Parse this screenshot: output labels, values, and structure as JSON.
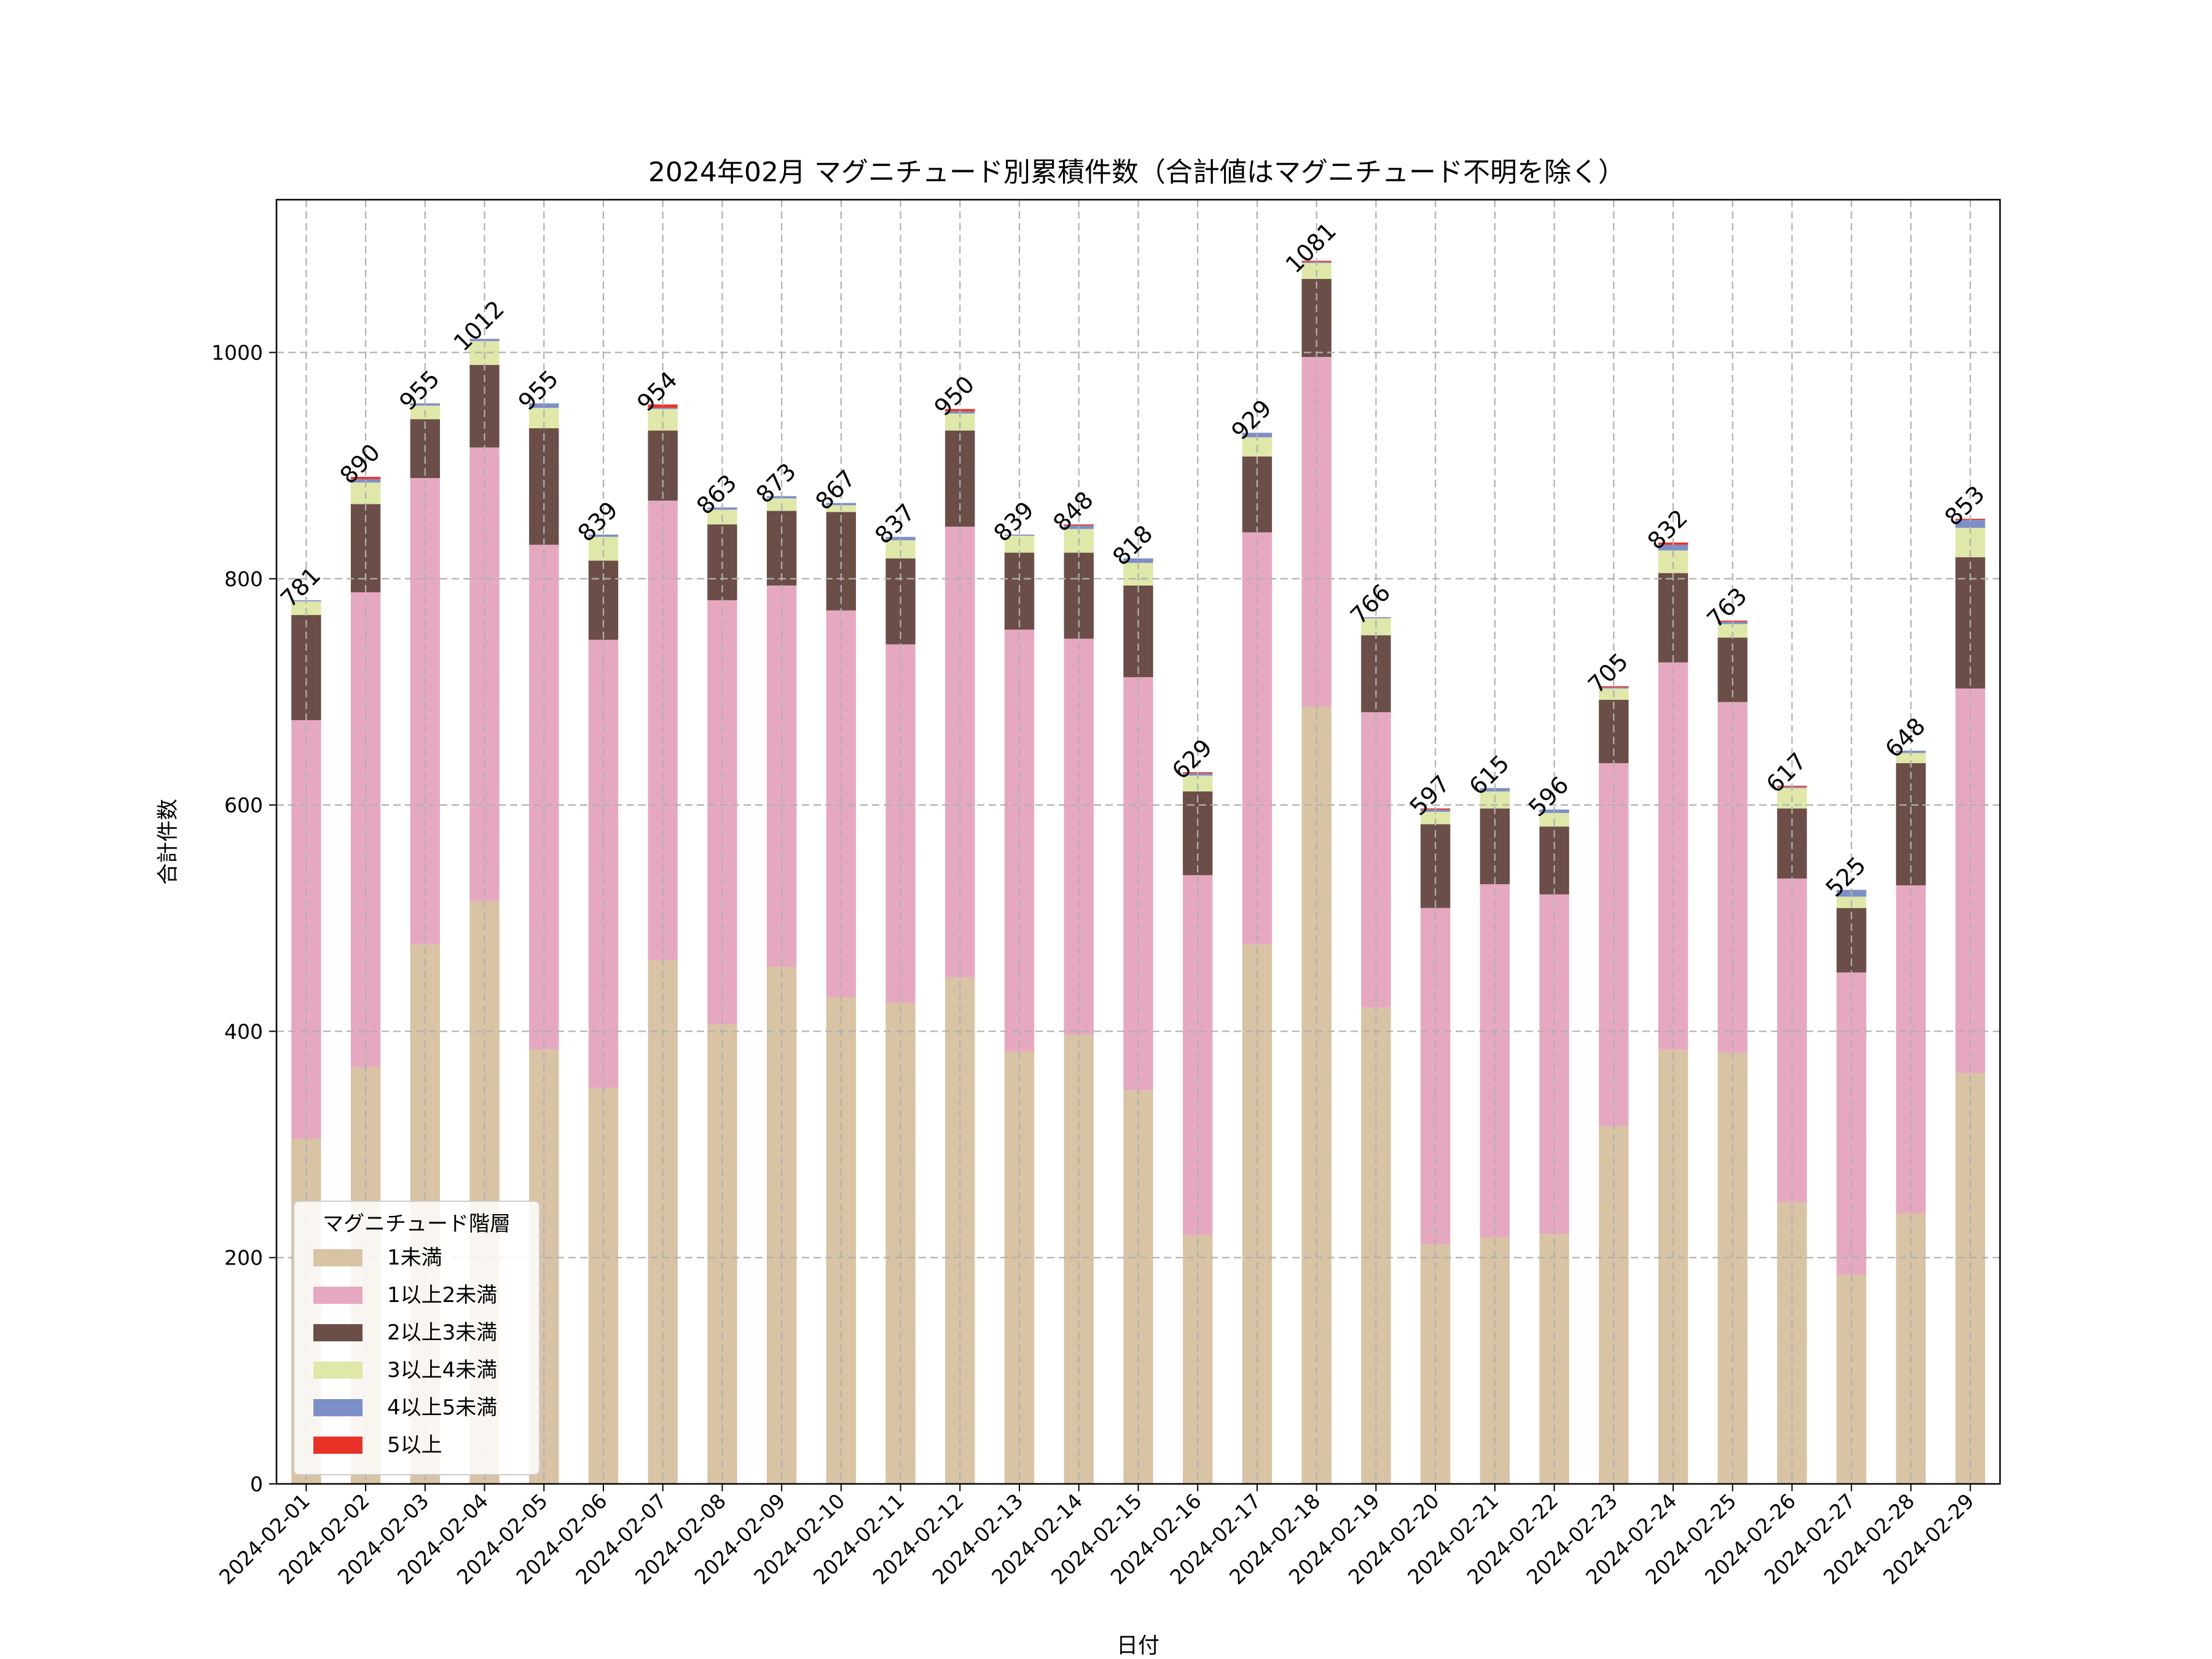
{
  "chart_data": {
    "type": "bar",
    "stacked": true,
    "title": "2024年02月 マグニチュード別累積件数（合計値はマグニチュード不明を除く）",
    "xlabel": "日付",
    "ylabel": "合計件数",
    "ylim": [
      0,
      1135
    ],
    "yticks": [
      0,
      200,
      400,
      600,
      800,
      1000
    ],
    "grid": true,
    "legend": {
      "title": "マグニチュード階層",
      "position": "lower-left"
    },
    "categories": [
      "2024-02-01",
      "2024-02-02",
      "2024-02-03",
      "2024-02-04",
      "2024-02-05",
      "2024-02-06",
      "2024-02-07",
      "2024-02-08",
      "2024-02-09",
      "2024-02-10",
      "2024-02-11",
      "2024-02-12",
      "2024-02-13",
      "2024-02-14",
      "2024-02-15",
      "2024-02-16",
      "2024-02-17",
      "2024-02-18",
      "2024-02-19",
      "2024-02-20",
      "2024-02-21",
      "2024-02-22",
      "2024-02-23",
      "2024-02-24",
      "2024-02-25",
      "2024-02-26",
      "2024-02-27",
      "2024-02-28",
      "2024-02-29"
    ],
    "series": [
      {
        "name": "1未満",
        "color": "#d8c3a5",
        "values": [
          305,
          368,
          477,
          515,
          384,
          350,
          463,
          406,
          457,
          430,
          425,
          448,
          382,
          397,
          348,
          220,
          477,
          687,
          421,
          212,
          218,
          221,
          316,
          384,
          381,
          249,
          185,
          239,
          363
        ]
      },
      {
        "name": "1以上2未満",
        "color": "#e6a8c0",
        "values": [
          370,
          420,
          412,
          401,
          446,
          396,
          406,
          375,
          337,
          342,
          317,
          398,
          373,
          350,
          365,
          318,
          364,
          309,
          261,
          297,
          312,
          300,
          321,
          342,
          310,
          286,
          267,
          290,
          340
        ]
      },
      {
        "name": "2以上3未満",
        "color": "#6b4e47",
        "values": [
          93,
          78,
          52,
          73,
          103,
          70,
          62,
          67,
          66,
          87,
          76,
          85,
          68,
          76,
          81,
          74,
          67,
          69,
          68,
          74,
          67,
          60,
          56,
          79,
          57,
          62,
          57,
          108,
          116
        ]
      },
      {
        "name": "3以上4未満",
        "color": "#dfe8a8",
        "values": [
          12,
          19,
          12,
          21,
          18,
          21,
          19,
          13,
          11,
          6,
          16,
          15,
          15,
          21,
          20,
          14,
          17,
          14,
          15,
          11,
          15,
          12,
          10,
          20,
          12,
          18,
          10,
          9,
          26
        ]
      },
      {
        "name": "4以上5未満",
        "color": "#7d8fc7",
        "values": [
          1,
          3,
          2,
          2,
          4,
          2,
          1,
          2,
          2,
          2,
          3,
          2,
          1,
          3,
          4,
          2,
          4,
          1,
          1,
          2,
          3,
          3,
          1,
          5,
          2,
          1,
          6,
          2,
          7
        ]
      },
      {
        "name": "5以上",
        "color": "#e83228",
        "values": [
          0,
          2,
          0,
          0,
          0,
          0,
          3,
          0,
          0,
          0,
          0,
          2,
          0,
          1,
          0,
          1,
          0,
          1,
          0,
          1,
          0,
          0,
          1,
          2,
          1,
          1,
          0,
          0,
          1
        ]
      }
    ],
    "totals": [
      781,
      890,
      955,
      1012,
      955,
      839,
      954,
      863,
      873,
      867,
      837,
      950,
      839,
      848,
      818,
      629,
      929,
      1081,
      766,
      597,
      615,
      596,
      705,
      832,
      763,
      617,
      525,
      648,
      853
    ]
  }
}
